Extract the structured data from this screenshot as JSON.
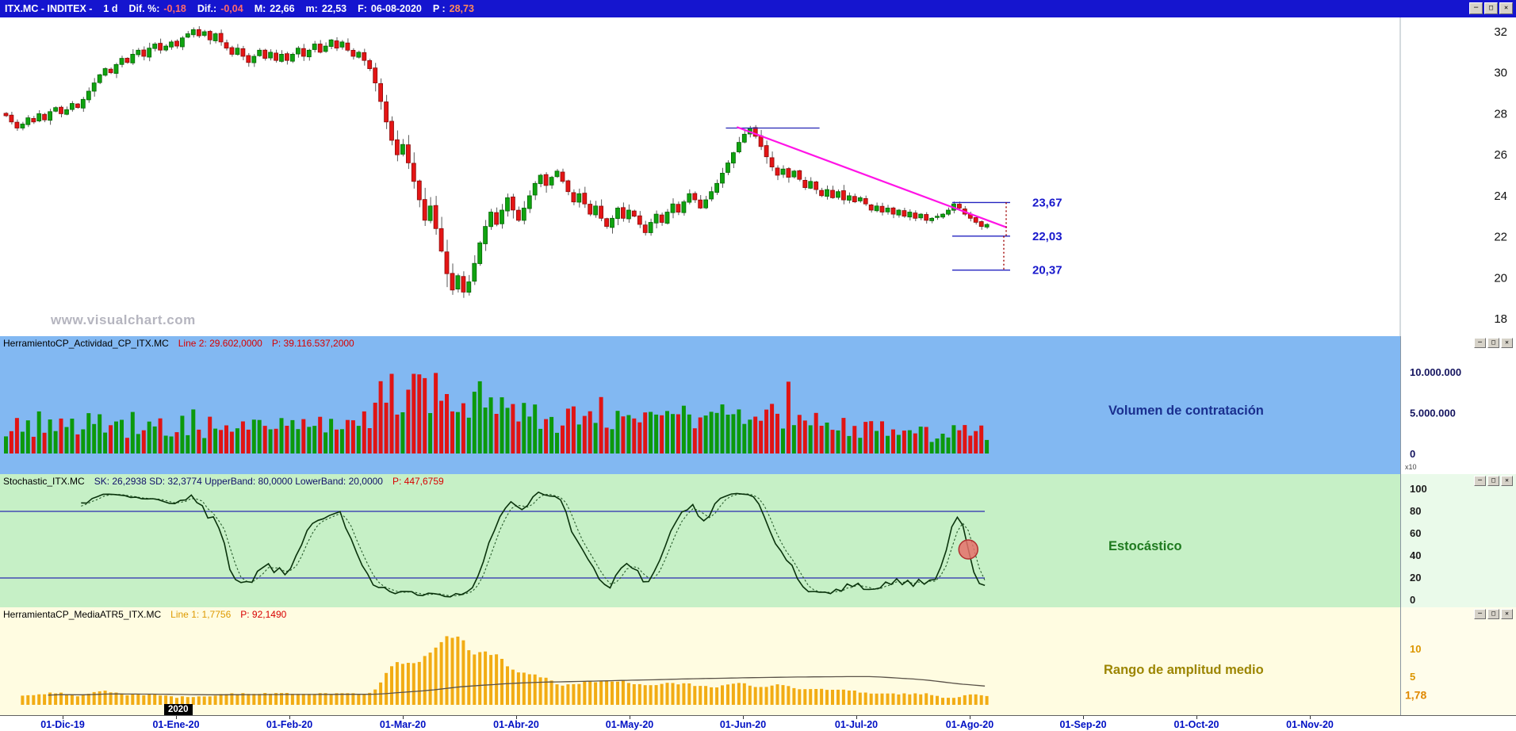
{
  "window_controls": {
    "minimize": "─",
    "maximize": "□",
    "close": "✕"
  },
  "title_bar": {
    "symbol": "ITX.MC - INDITEX -",
    "period": "1 d",
    "dif_pct_label": "Dif. %:",
    "dif_pct_value": "-0,18",
    "dif_label": "Dif.:",
    "dif_value": "-0,04",
    "max_label": "M:",
    "max_value": "22,66",
    "min_label": "m:",
    "min_value": "22,53",
    "date_label": "F:",
    "date_value": "06-08-2020",
    "p_label": "P :",
    "p_value": "28,73"
  },
  "watermark": "www.visualchart.com",
  "panels": {
    "volume": {
      "header_name": "HerramientoCP_Actividad_CP_ITX.MC",
      "header_line": "Line 2: 29.602,0000",
      "header_p": "P: 39.116.537,2000",
      "label": "Volumen de contratación",
      "axis_ticks": [
        {
          "label": "10.000.000",
          "value": 10
        },
        {
          "label": "5.000.000",
          "value": 5
        },
        {
          "label": "0",
          "value": 0
        }
      ],
      "scale_note": "x10"
    },
    "stochastic": {
      "header_name": "Stochastic_ITX.MC",
      "header_params": "SK: 26,2938  SD: 32,3774  UpperBand: 80,0000  LowerBand: 20,0000",
      "header_p": "P: 447,6759",
      "label": "Estocástico",
      "axis_ticks": [
        {
          "label": "100",
          "value": 100
        },
        {
          "label": "80",
          "value": 80
        },
        {
          "label": "60",
          "value": 60
        },
        {
          "label": "40",
          "value": 40
        },
        {
          "label": "20",
          "value": 20
        },
        {
          "label": "0",
          "value": 0
        }
      ]
    },
    "atr": {
      "header_name": "HerramientaCP_MediaATR5_ITX.MC",
      "header_line": "Line 1: 1,7756",
      "header_p": "P: 92,1490",
      "label": "Rango de amplitud medio",
      "axis_ticks": [
        {
          "label": "10",
          "value": 10
        },
        {
          "label": "5",
          "value": 5
        }
      ],
      "current_value": "1,78"
    }
  },
  "price_axis": {
    "ticks": [
      32,
      30,
      28,
      26,
      24,
      22,
      20,
      18
    ]
  },
  "time_axis": {
    "labels": [
      "01-Dic-19",
      "01-Ene-20",
      "01-Feb-20",
      "01-Mar-20",
      "01-Abr-20",
      "01-May-20",
      "01-Jun-20",
      "01-Jul-20",
      "01-Ago-20",
      "01-Sep-20",
      "01-Oct-20",
      "01-Nov-20"
    ],
    "year_box": "2020"
  },
  "chart_data": {
    "type": "candlestick",
    "title": "ITX.MC - INDITEX, velas diarias con volumen, estocástico y rango medio",
    "ylim": [
      18,
      32
    ],
    "closes": [
      27.9,
      27.6,
      27.3,
      27.5,
      27.8,
      27.6,
      28.0,
      27.7,
      28.1,
      28.3,
      28.0,
      28.2,
      28.5,
      28.3,
      28.7,
      29.1,
      29.5,
      29.9,
      30.2,
      30.0,
      30.4,
      30.7,
      30.5,
      30.9,
      31.1,
      30.8,
      31.2,
      31.4,
      31.1,
      31.3,
      31.5,
      31.3,
      31.7,
      31.9,
      32.1,
      31.8,
      32.0,
      31.6,
      31.9,
      31.5,
      31.2,
      30.9,
      31.2,
      30.8,
      30.5,
      30.8,
      31.1,
      30.7,
      31.0,
      30.6,
      30.9,
      30.6,
      30.9,
      31.2,
      30.8,
      31.1,
      31.4,
      31.0,
      31.3,
      31.6,
      31.2,
      31.5,
      31.1,
      30.8,
      31.0,
      30.6,
      30.2,
      29.5,
      28.6,
      27.6,
      26.7,
      26.0,
      26.5,
      25.6,
      24.7,
      23.8,
      22.8,
      23.5,
      22.4,
      21.3,
      20.2,
      19.4,
      20.1,
      19.3,
      19.8,
      20.7,
      21.7,
      22.5,
      23.2,
      22.6,
      23.3,
      23.9,
      23.3,
      22.8,
      23.4,
      24.0,
      24.6,
      25.0,
      24.5,
      24.9,
      25.2,
      24.7,
      24.2,
      23.7,
      24.1,
      23.6,
      23.1,
      23.5,
      22.9,
      22.5,
      22.9,
      23.4,
      22.9,
      23.3,
      23.0,
      22.6,
      22.2,
      22.7,
      23.1,
      22.7,
      23.2,
      23.6,
      23.2,
      23.7,
      24.1,
      23.8,
      23.4,
      23.8,
      24.2,
      24.6,
      25.1,
      25.6,
      26.1,
      26.6,
      27.0,
      27.3,
      26.9,
      26.4,
      25.9,
      25.4,
      25.0,
      25.3,
      24.9,
      25.2,
      24.8,
      24.4,
      24.7,
      24.3,
      24.0,
      24.3,
      23.9,
      24.2,
      23.8,
      24.0,
      23.7,
      23.9,
      23.6,
      23.3,
      23.5,
      23.2,
      23.4,
      23.1,
      23.3,
      23.0,
      23.2,
      22.9,
      23.1,
      22.8,
      22.9,
      23.0,
      23.1,
      23.3,
      23.6,
      23.4,
      23.1,
      22.9,
      22.7,
      22.5,
      22.6
    ],
    "resistance_line": {
      "price": 27.3,
      "from_index": 131,
      "to_index": 148
    },
    "trend_line": {
      "from_index": 133,
      "from_price": 27.35,
      "to_index": 182,
      "to_price": 22.45
    },
    "levels": [
      {
        "label": "23,67",
        "value": 23.67
      },
      {
        "label": "22,03",
        "value": 22.03
      },
      {
        "label": "20,37",
        "value": 20.37
      }
    ],
    "volume_ylim": [
      0,
      10000000
    ],
    "volume_spikes": {
      "34": 5.4,
      "96": 6.0,
      "120": 5.2,
      "142": 8.8
    },
    "stochastic": {
      "k_period": 14,
      "smooth": 3,
      "upper_band": 80,
      "lower_band": 20,
      "sk_last": 26.2938,
      "sd_last": 32.3774,
      "signal_index": 175
    },
    "atr": {
      "period": 5,
      "last": 1.7756
    }
  }
}
